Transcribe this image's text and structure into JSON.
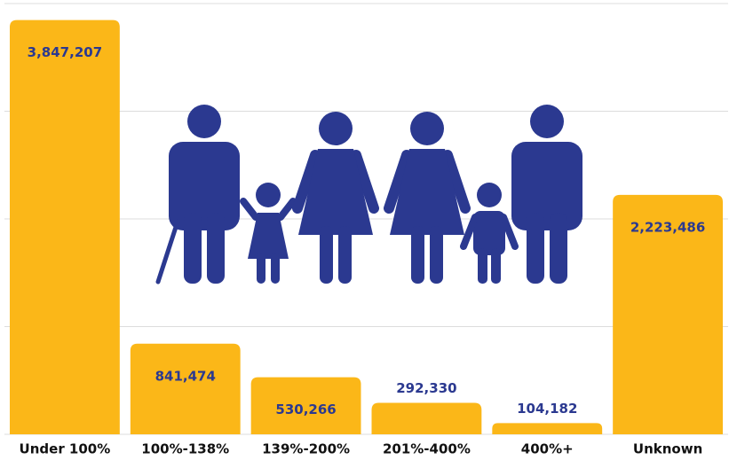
{
  "chart_data": {
    "type": "bar",
    "categories": [
      "Under 100%",
      "100%-138%",
      "139%-200%",
      "201%-400%",
      "400%+",
      "Unknown"
    ],
    "values": [
      3847207,
      841474,
      530266,
      292330,
      104182,
      2223486
    ],
    "value_labels": [
      "3,847,207",
      "841,474",
      "530,266",
      "292,330",
      "104,182",
      "2,223,486"
    ],
    "color": "#fbb718",
    "ylim": [
      0,
      4000000
    ],
    "yticks": [
      0,
      1000000,
      2000000,
      3000000,
      4000000
    ],
    "grid": true
  }
}
